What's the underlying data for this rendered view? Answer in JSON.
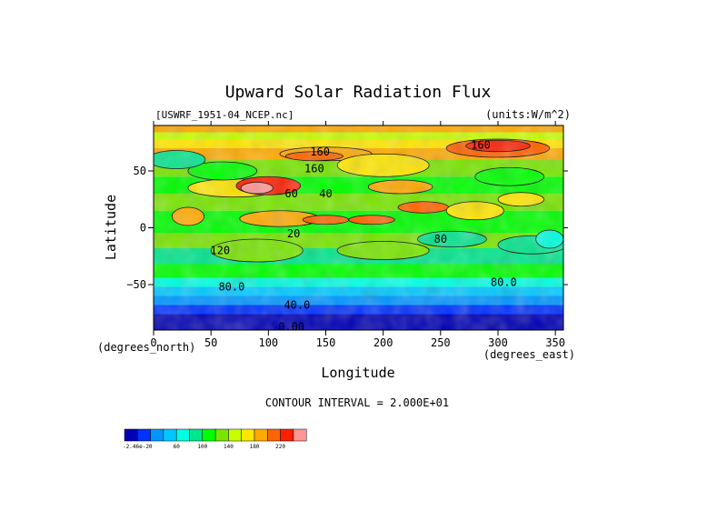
{
  "chart_data": {
    "type": "heatmap",
    "title": "Upward Solar Radiation Flux",
    "file_label": "[USWRF_1951-04_NCEP.nc]",
    "units_label": "(units:W/m^2)",
    "xlabel": "Longitude",
    "ylabel": "Latitude",
    "x_unit_label": "(degrees_east)",
    "y_unit_label": "(degrees_north)",
    "xlim": [
      0,
      357
    ],
    "ylim": [
      -90,
      90
    ],
    "x_ticks": [
      0,
      50,
      100,
      150,
      200,
      250,
      300,
      350
    ],
    "y_ticks": [
      50,
      0,
      -50
    ],
    "y_tick_labels": [
      "50",
      "0",
      "−50"
    ],
    "contour_interval_text": "CONTOUR INTERVAL = 2.000E+01",
    "contour_labels": [
      {
        "text": "160",
        "lon": 145,
        "lat": 67
      },
      {
        "text": "160",
        "lon": 285,
        "lat": 73
      },
      {
        "text": "160",
        "lon": 140,
        "lat": 52
      },
      {
        "text": "60",
        "lon": 120,
        "lat": 30
      },
      {
        "text": "40",
        "lon": 150,
        "lat": 30
      },
      {
        "text": "20",
        "lon": 122,
        "lat": -5
      },
      {
        "text": "80",
        "lon": 250,
        "lat": -10
      },
      {
        "text": "120",
        "lon": 58,
        "lat": -20
      },
      {
        "text": "80.0",
        "lon": 68,
        "lat": -52
      },
      {
        "text": "80.0",
        "lon": 305,
        "lat": -48
      },
      {
        "text": "40.0",
        "lon": 125,
        "lat": -68
      },
      {
        "text": "0.00",
        "lon": 120,
        "lat": -87
      }
    ],
    "colorbar": {
      "colors": [
        "#0000b4",
        "#0032ff",
        "#0096ff",
        "#00c8ff",
        "#00ffe1",
        "#00e68c",
        "#00ff00",
        "#78e600",
        "#c8ff00",
        "#ffe600",
        "#ffaa00",
        "#ff6400",
        "#ff1e00",
        "#ff9696"
      ],
      "labels": [
        {
          "text": "-2.46e-20",
          "index": 0
        },
        {
          "text": "60",
          "index": 3
        },
        {
          "text": "100",
          "index": 5
        },
        {
          "text": "140",
          "index": 7
        },
        {
          "text": "180",
          "index": 9
        },
        {
          "text": "220",
          "index": 11
        }
      ]
    }
  }
}
